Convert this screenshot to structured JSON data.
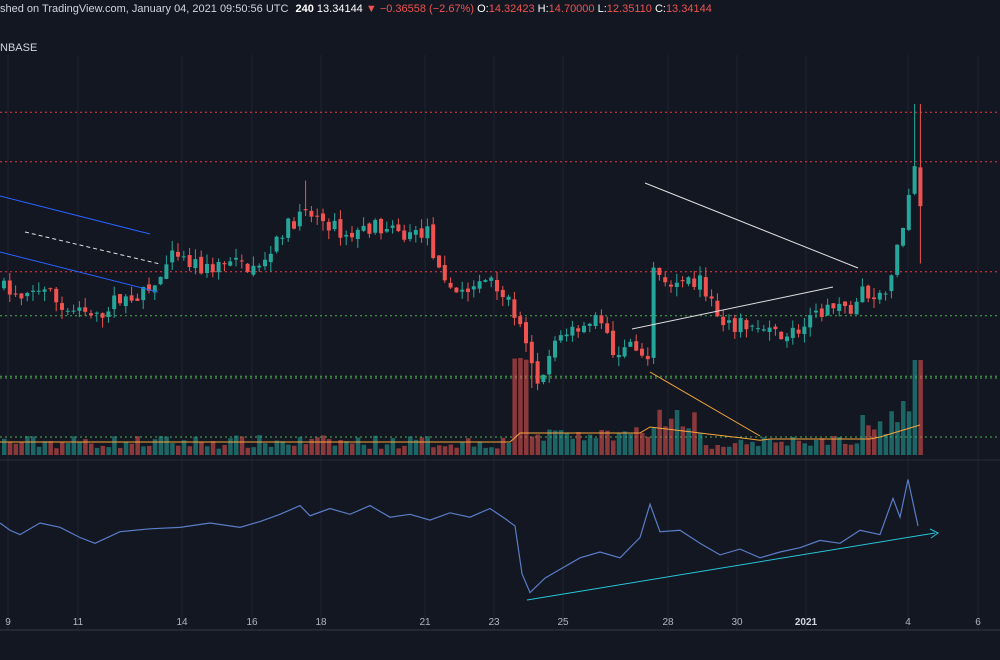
{
  "header": {
    "published": "shed on TradingView.com, January 04, 2021 09:50:56 UTC",
    "timeframe": "240",
    "last_price": "13.34144",
    "change": "▼ −0.36558 (−2.67%)",
    "ohlc": [
      {
        "label": "O:",
        "value": "14.32423"
      },
      {
        "label": "H:",
        "value": "14.70000"
      },
      {
        "label": "L:",
        "value": "12.35110"
      },
      {
        "label": "C:",
        "value": "13.34144"
      }
    ],
    "exchange": "NBASE"
  },
  "colors": {
    "background": "#131722",
    "up": "#26a69a",
    "down": "#ef5350",
    "resistance": "#f23645",
    "support": "#4caf50",
    "rsi": "#5b7cc7",
    "trendline": "#e0e0e0",
    "channel": "#2962ff",
    "volume_ma": "#f7a53b",
    "divergence": "#26c6da"
  },
  "chart_data": {
    "type": "candlestick",
    "x_axis": {
      "ticks": [
        "9",
        "11",
        "14",
        "16",
        "18",
        "21",
        "23",
        "25",
        "28",
        "30",
        "2021",
        "4",
        "6"
      ],
      "bold_ticks": [
        "2021"
      ]
    },
    "price_panel": {
      "y_range": [
        9.0,
        16.0
      ],
      "resistance_levels": [
        15.05,
        14.15,
        12.15
      ],
      "support_levels": [
        11.35,
        10.25
      ],
      "series": [
        {
          "anchor": "9",
          "close_path": [
            11.9,
            11.6,
            11.4,
            11.5,
            11.3,
            11.1,
            11.0,
            11.2,
            11.5,
            11.5
          ]
        },
        {
          "anchor": "14",
          "close_path": [
            12.2,
            12.4,
            12.3,
            12.1,
            12.2,
            12.9,
            13.2,
            13.1,
            13.2,
            13.0,
            12.8,
            12.6,
            12.5
          ]
        },
        {
          "anchor": "21",
          "close_path": [
            11.7,
            11.9,
            12.1,
            11.7,
            11.3,
            10.6,
            10.1,
            10.4,
            11.0,
            11.3,
            11.2,
            10.9,
            10.6
          ]
        },
        {
          "anchor": "28",
          "close_path": [
            12.1,
            11.8,
            11.7,
            11.2,
            11.3,
            11.0,
            11.1,
            11.0,
            11.2,
            11.3,
            11.4,
            11.6,
            11.8,
            12.3,
            13.4,
            14.0,
            13.3
          ]
        }
      ]
    },
    "volume_panel": {
      "y_range": [
        0,
        100
      ],
      "spike_markers": [
        "23",
        "28",
        "4"
      ]
    },
    "rsi_panel": {
      "y_range": [
        0,
        100
      ],
      "divergence": "rising lows"
    },
    "annotations": [
      "descending channel",
      "symmetrical triangle",
      "rsi divergence line"
    ]
  }
}
